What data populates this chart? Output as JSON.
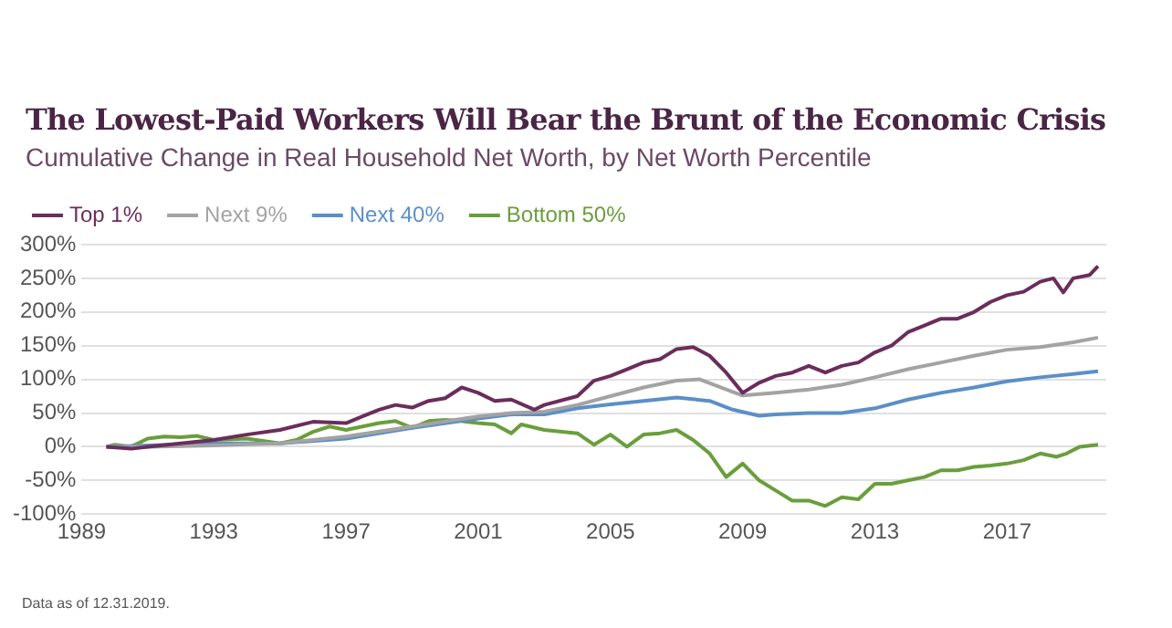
{
  "chart_data": {
    "type": "line",
    "title": "The Lowest-Paid Workers Will Bear the Brunt of the Economic Crisis",
    "subtitle": "Cumulative Change in Real Household Net Worth, by Net Worth Percentile",
    "annotations": [
      "Data as of 12.31.2019."
    ],
    "xlim": [
      1989,
      2020
    ],
    "xticks": [
      1989,
      1993,
      1997,
      2001,
      2005,
      2009,
      2013,
      2017
    ],
    "ylim": [
      -100,
      300
    ],
    "yticks": [
      {
        "value": -100,
        "label": "-100%"
      },
      {
        "value": -50,
        "label": "-50%"
      },
      {
        "value": 0,
        "label": "0%"
      },
      {
        "value": 50,
        "label": "50%"
      },
      {
        "value": 100,
        "label": "100%"
      },
      {
        "value": 150,
        "label": "150%"
      },
      {
        "value": 200,
        "label": "200%"
      },
      {
        "value": 250,
        "label": "250%"
      },
      {
        "value": 300,
        "label": "300%"
      }
    ],
    "grid": "y",
    "legend": "top left",
    "marker": "none",
    "line_style": "solid",
    "series": [
      {
        "name": "Top 1%",
        "color": "#6b2d5c",
        "x": [
          1989.75,
          1990.5,
          1991,
          1992,
          1993,
          1994,
          1995,
          1996,
          1997,
          1997.5,
          1998,
          1998.5,
          1999,
          1999.5,
          2000,
          2000.5,
          2001,
          2001.5,
          2002,
          2002.7,
          2003,
          2004,
          2004.5,
          2005,
          2005.5,
          2006,
          2006.5,
          2007,
          2007.5,
          2008,
          2008.5,
          2009,
          2009.5,
          2010,
          2010.5,
          2011,
          2011.5,
          2012,
          2012.5,
          2013,
          2013.5,
          2014,
          2014.5,
          2015,
          2015.5,
          2016,
          2016.5,
          2017,
          2017.5,
          2018,
          2018.4,
          2018.7,
          2019,
          2019.5,
          2019.75
        ],
        "values": [
          0,
          -3,
          0,
          5,
          10,
          18,
          25,
          37,
          35,
          45,
          55,
          62,
          58,
          68,
          72,
          88,
          80,
          68,
          70,
          55,
          62,
          75,
          98,
          105,
          115,
          125,
          130,
          145,
          148,
          135,
          110,
          80,
          95,
          105,
          110,
          120,
          110,
          120,
          125,
          140,
          150,
          170,
          180,
          190,
          190,
          200,
          215,
          225,
          230,
          245,
          250,
          229,
          250,
          255,
          268
        ]
      },
      {
        "name": "Next 9%",
        "color": "#a3a3a3",
        "x": [
          1989.75,
          1991,
          1993,
          1995,
          1997,
          1999,
          2001,
          2002,
          2003,
          2004,
          2005,
          2006,
          2007,
          2007.7,
          2008.5,
          2009,
          2010,
          2011,
          2012,
          2013,
          2014,
          2015,
          2016,
          2017,
          2018,
          2019,
          2019.75
        ],
        "values": [
          0,
          0,
          2,
          5,
          15,
          30,
          45,
          50,
          52,
          62,
          75,
          88,
          98,
          100,
          85,
          76,
          80,
          85,
          92,
          103,
          115,
          125,
          135,
          144,
          148,
          155,
          162
        ]
      },
      {
        "name": "Next 40%",
        "color": "#5b8fc7",
        "x": [
          1989.75,
          1991,
          1993,
          1995,
          1997,
          1999,
          2001,
          2002,
          2003,
          2004,
          2005,
          2006,
          2007,
          2008,
          2008.7,
          2009.5,
          2010,
          2011,
          2012,
          2013,
          2014,
          2015,
          2016,
          2017,
          2018,
          2019,
          2019.75
        ],
        "values": [
          0,
          2,
          5,
          5,
          12,
          28,
          42,
          48,
          48,
          57,
          63,
          68,
          73,
          68,
          55,
          46,
          48,
          50,
          50,
          57,
          70,
          80,
          88,
          97,
          103,
          108,
          112
        ]
      },
      {
        "name": "Bottom 50%",
        "color": "#6a9e3c",
        "x": [
          1989.75,
          1990,
          1990.5,
          1991,
          1991.5,
          1992,
          1992.5,
          1993,
          1994,
          1995,
          1995.5,
          1996,
          1996.5,
          1997,
          1997.5,
          1998,
          1998.5,
          1999,
          1999.5,
          2000,
          2000.5,
          2001,
          2001.5,
          2002,
          2002.3,
          2003,
          2004,
          2004.5,
          2005,
          2005.5,
          2006,
          2006.5,
          2007,
          2007.5,
          2008,
          2008.5,
          2009,
          2009.5,
          2010,
          2010.5,
          2011,
          2011.5,
          2012,
          2012.5,
          2013,
          2013.5,
          2014,
          2014.5,
          2015,
          2015.5,
          2016,
          2016.5,
          2017,
          2017.5,
          2018,
          2018.5,
          2018.8,
          2019.2,
          2019.75
        ],
        "values": [
          0,
          3,
          0,
          12,
          15,
          14,
          16,
          10,
          12,
          5,
          10,
          22,
          30,
          25,
          30,
          35,
          38,
          28,
          38,
          40,
          38,
          35,
          33,
          20,
          33,
          25,
          20,
          3,
          18,
          0,
          18,
          20,
          25,
          10,
          -10,
          -45,
          -25,
          -50,
          -65,
          -80,
          -80,
          -88,
          -75,
          -78,
          -55,
          -55,
          -50,
          -45,
          -35,
          -35,
          -30,
          -28,
          -25,
          -20,
          -10,
          -15,
          -10,
          0,
          3
        ]
      }
    ]
  }
}
